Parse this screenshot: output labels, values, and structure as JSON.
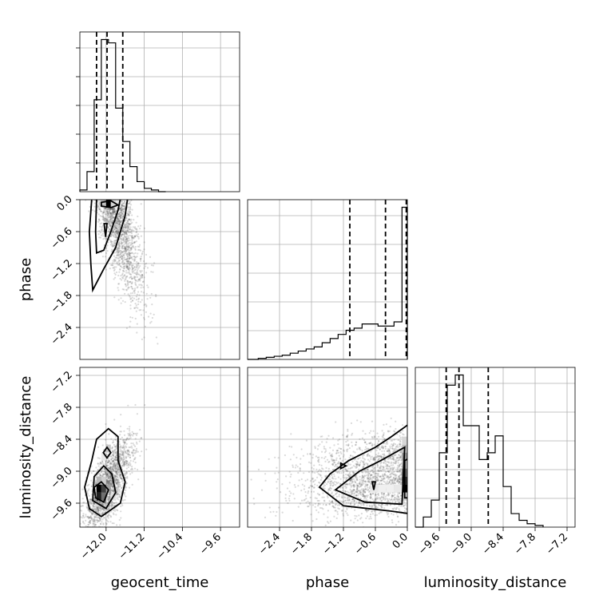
{
  "chart_data": {
    "type": "corner",
    "parameters": [
      "geocent_time",
      "phase",
      "luminosity_distance"
    ],
    "axes": {
      "geocent_time": {
        "label": "geocent_time",
        "range": [
          -12.55,
          -9.2
        ],
        "ticks": [
          -12.0,
          -11.2,
          -10.4,
          -9.6
        ],
        "tick_labels": [
          "−12.0",
          "−11.2",
          "−10.4",
          "−9.6"
        ]
      },
      "phase": {
        "label": "phase",
        "range": [
          -3.0,
          0.0
        ],
        "ticks": [
          -2.4,
          -1.8,
          -1.2,
          -0.6,
          0.0
        ],
        "tick_labels": [
          "−2.4",
          "−1.8",
          "−1.2",
          "−0.6",
          "0.0"
        ]
      },
      "luminosity_distance": {
        "label": "luminosity_distance",
        "range": [
          -10.05,
          -7.05
        ],
        "ticks": [
          -9.6,
          -9.0,
          -8.4,
          -7.8,
          -7.2
        ],
        "tick_labels": [
          "−9.6",
          "−9.0",
          "−8.4",
          "−7.8",
          "−7.2"
        ]
      }
    },
    "histograms": {
      "geocent_time": {
        "bin_edges": [
          -12.55,
          -12.4,
          -12.25,
          -12.1,
          -11.95,
          -11.8,
          -11.65,
          -11.5,
          -11.35,
          -11.2,
          -11.05,
          -10.9,
          -10.75
        ],
        "counts": [
          1,
          12,
          55,
          91,
          89,
          50,
          30,
          15,
          6,
          2,
          1,
          0
        ],
        "quantiles": [
          -12.2,
          -11.98,
          -11.65
        ]
      },
      "phase": {
        "bin_edges": [
          -2.8,
          -2.65,
          -2.5,
          -2.35,
          -2.2,
          -2.05,
          -1.9,
          -1.75,
          -1.6,
          -1.45,
          -1.3,
          -1.15,
          -1.0,
          -0.85,
          -0.7,
          -0.55,
          -0.4,
          -0.25,
          -0.1,
          0.0
        ],
        "counts": [
          0.5,
          1,
          1.5,
          2,
          3,
          4,
          5,
          6,
          8,
          10,
          12,
          14,
          15,
          17,
          17,
          16,
          16,
          18,
          73
        ],
        "quantiles": [
          -1.08,
          -0.41,
          -0.02
        ]
      },
      "luminosity_distance": {
        "bin_edges": [
          -9.9,
          -9.75,
          -9.6,
          -9.45,
          -9.3,
          -9.15,
          -9.0,
          -8.85,
          -8.7,
          -8.55,
          -8.4,
          -8.25,
          -8.1,
          -7.95,
          -7.8,
          -7.65
        ],
        "counts": [
          3,
          8,
          22,
          42,
          45,
          30,
          30,
          20,
          22,
          27,
          12,
          4,
          2,
          1,
          0.5
        ],
        "quantiles": [
          -9.47,
          -9.23,
          -8.68
        ]
      }
    },
    "quantile_levels": [
      0.16,
      0.5,
      0.84
    ]
  }
}
